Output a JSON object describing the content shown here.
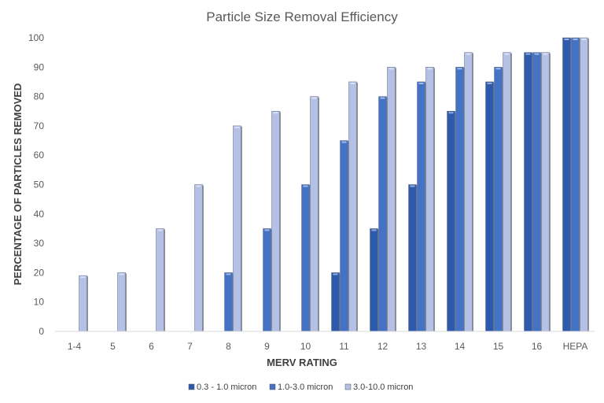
{
  "chart_data": {
    "type": "bar",
    "title": "Particle Size Removal Efficiency",
    "xlabel": "MERV RATING",
    "ylabel": "PERCENTAGE OF PARTICLES REMOVED",
    "ylim": [
      0,
      100
    ],
    "yticks": [
      0,
      10,
      20,
      30,
      40,
      50,
      60,
      70,
      80,
      90,
      100
    ],
    "grid": false,
    "legend": "bottom",
    "categories": [
      "1-4",
      "5",
      "6",
      "7",
      "8",
      "9",
      "10",
      "11",
      "12",
      "13",
      "14",
      "15",
      "16",
      "HEPA"
    ],
    "series": [
      {
        "name": "0.3 - 1.0 micron",
        "color": "#2E5AAC",
        "values": [
          0,
          0,
          0,
          0,
          0,
          0,
          0,
          20,
          35,
          50,
          75,
          85,
          95,
          100
        ]
      },
      {
        "name": "1.0-3.0 micron",
        "color": "#4472C4",
        "values": [
          0,
          0,
          0,
          0,
          20,
          35,
          50,
          65,
          80,
          85,
          90,
          90,
          95,
          100
        ]
      },
      {
        "name": "3.0-10.0 micron",
        "color": "#B4C0E4",
        "values": [
          19,
          20,
          35,
          50,
          70,
          75,
          80,
          85,
          90,
          90,
          95,
          95,
          95,
          100
        ]
      }
    ]
  }
}
